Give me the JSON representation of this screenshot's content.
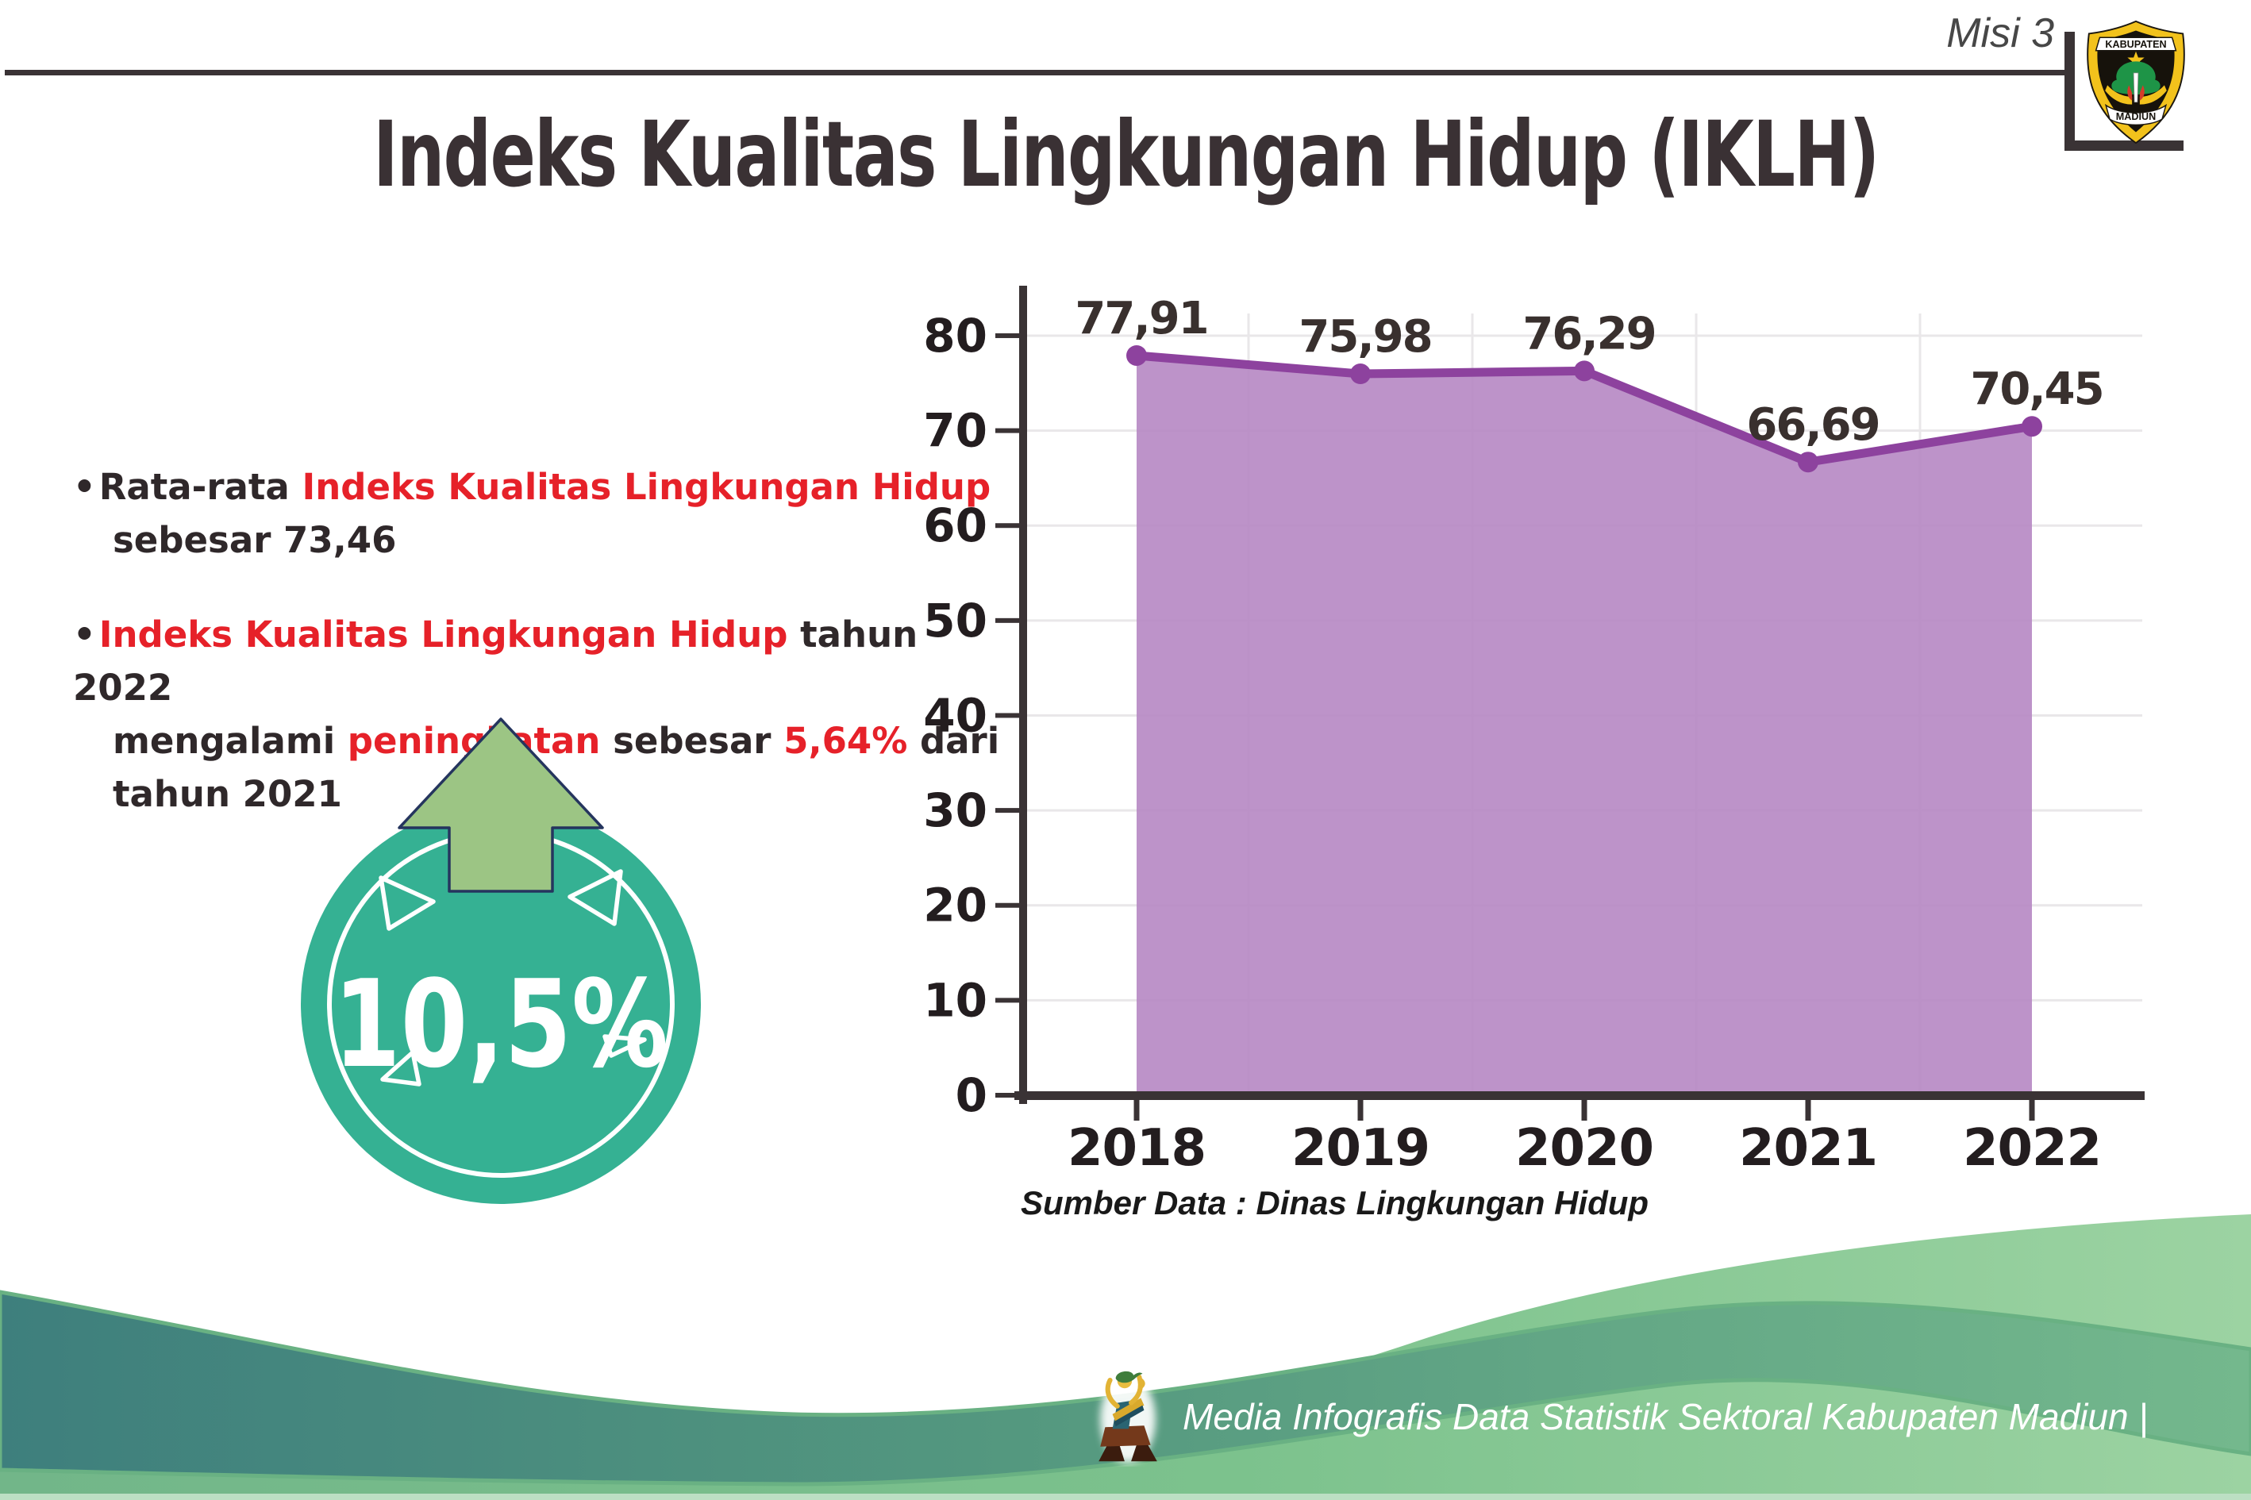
{
  "header": {
    "misi": "Misi 3"
  },
  "logo": {
    "banner_top": "KABUPATEN",
    "banner_bottom": "MADIUN"
  },
  "title": "Indeks Kualitas Lingkungan Hidup (IKLH)",
  "bullets": {
    "glyph": "•",
    "item1": {
      "line1": [
        {
          "text": "Rata-rata ",
          "style": "dark"
        },
        {
          "text": "Indeks Kualitas Lingkungan Hidup",
          "style": "red"
        }
      ],
      "line2": [
        {
          "text": "sebesar 73,46",
          "style": "dark"
        }
      ]
    },
    "item2": {
      "line1": [
        {
          "text": "Indeks Kualitas Lingkungan Hidup",
          "style": "red"
        },
        {
          "text": " tahun 2022",
          "style": "dark"
        }
      ],
      "line2": [
        {
          "text": "mengalami ",
          "style": "dark"
        },
        {
          "text": "peningkatan",
          "style": "red"
        },
        {
          "text": " sebesar ",
          "style": "dark"
        },
        {
          "text": "5,64%",
          "style": "red"
        },
        {
          "text": " dari",
          "style": "dark"
        }
      ],
      "line3": [
        {
          "text": "tahun 2021",
          "style": "dark"
        }
      ]
    }
  },
  "badge": {
    "value": "10,5%"
  },
  "chart_data": {
    "type": "area",
    "title": "",
    "categories": [
      "2018",
      "2019",
      "2020",
      "2021",
      "2022"
    ],
    "values": [
      77.91,
      75.98,
      76.29,
      66.69,
      70.45
    ],
    "value_labels": [
      "77,91",
      "75,98",
      "76,29",
      "66,69",
      "70,45"
    ],
    "xlabel": "",
    "ylabel": "",
    "ylim": [
      0,
      85
    ],
    "yticks": [
      0,
      10,
      20,
      30,
      40,
      50,
      60,
      70,
      80
    ],
    "grid": true,
    "legend": false,
    "colors": {
      "fill": "#b687c3",
      "line": "#8d429e",
      "axis": "#3a3335",
      "grid": "#e9e7e9",
      "tick_label": "#231d1f",
      "data_label": "#39302e"
    }
  },
  "source": "Sumber Data : Dinas Lingkungan Hidup",
  "footer": {
    "text": "Media Infografis Data Statistik Sektoral Kabupaten Madiun |"
  },
  "colors": {
    "red_text": "#e62129",
    "dark_text": "#2f282a",
    "badge_teal": "#35b193",
    "arrow_green": "#9cc584",
    "footer_teal": "#3e7f7d",
    "footer_green": "#7cc08d"
  }
}
